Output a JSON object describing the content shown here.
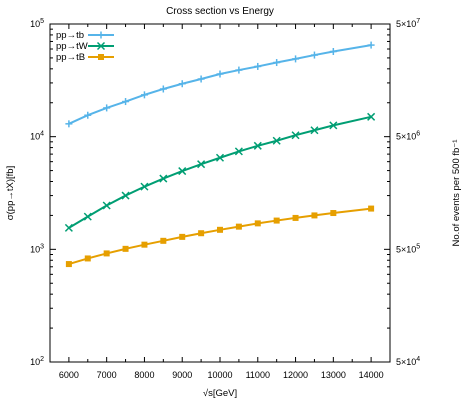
{
  "chart_data": {
    "type": "line",
    "title": "Cross section vs Energy",
    "xlabel": "√s[GeV]",
    "ylabel": "σ(pp→tX)[fb]",
    "y2label": "No.of events per 500 fb⁻¹",
    "x": [
      6000,
      6500,
      7000,
      7500,
      8000,
      8500,
      9000,
      9500,
      10000,
      10500,
      11000,
      11500,
      12000,
      12500,
      13000,
      14000
    ],
    "xlim": [
      5500,
      14500
    ],
    "ylim": [
      100,
      100000
    ],
    "y_scale": "log",
    "y2lim": [
      50000,
      50000000
    ],
    "x_ticks": [
      6000,
      7000,
      8000,
      9000,
      10000,
      11000,
      12000,
      13000,
      14000
    ],
    "x_tick_labels": [
      "6000",
      "7000",
      "8000",
      "9000",
      "10000",
      "11000",
      "12000",
      "13000",
      "14000"
    ],
    "y_ticks": [
      100,
      1000,
      10000,
      100000
    ],
    "y_tick_labels": [
      {
        "base": "10",
        "exp": "2"
      },
      {
        "base": "10",
        "exp": "3"
      },
      {
        "base": "10",
        "exp": "4"
      },
      {
        "base": "10",
        "exp": "5"
      }
    ],
    "y2_ticks": [
      50000,
      500000,
      5000000,
      50000000
    ],
    "y2_tick_labels": [
      {
        "base": "5×10",
        "exp": "4"
      },
      {
        "base": "5×10",
        "exp": "5"
      },
      {
        "base": "5×10",
        "exp": "6"
      },
      {
        "base": "5×10",
        "exp": "7"
      }
    ],
    "legend_position": "top-left",
    "grid": false,
    "series": [
      {
        "name": "pp→tb",
        "color": "#56b4e9",
        "marker": "plus",
        "values": [
          13000,
          15500,
          18000,
          20500,
          23500,
          26500,
          29500,
          32500,
          36000,
          39000,
          42000,
          45500,
          49000,
          53000,
          57000,
          65000
        ]
      },
      {
        "name": "pp→tW",
        "color": "#009e73",
        "marker": "cross",
        "values": [
          1550,
          1950,
          2450,
          3000,
          3600,
          4250,
          4950,
          5700,
          6500,
          7400,
          8300,
          9200,
          10300,
          11400,
          12600,
          15000
        ]
      },
      {
        "name": "pp→tB",
        "color": "#e69f00",
        "marker": "square",
        "values": [
          740,
          830,
          920,
          1010,
          1100,
          1190,
          1290,
          1390,
          1490,
          1590,
          1700,
          1800,
          1900,
          2000,
          2100,
          2300
        ]
      }
    ]
  }
}
